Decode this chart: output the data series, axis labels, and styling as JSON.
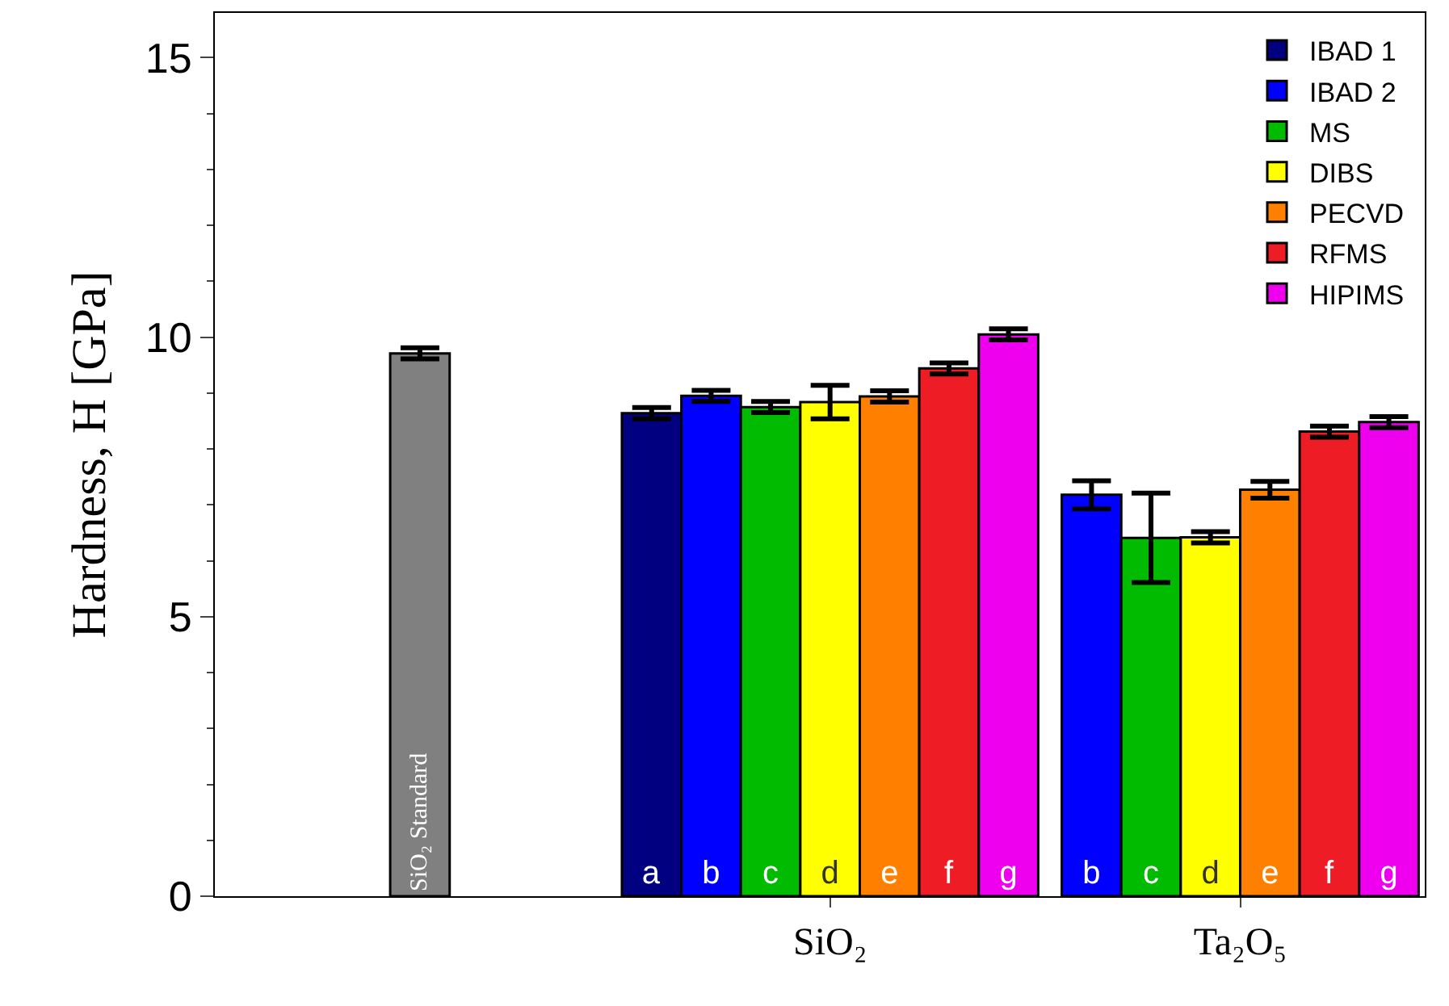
{
  "chart_data": {
    "type": "bar",
    "ylabel": "Hardness, H [GPa]",
    "categories": [
      null,
      "SiO₂",
      "Ta₂O₅"
    ],
    "series": [
      {
        "color": "#808080",
        "values": [
          9.71,
          null,
          null
        ],
        "errors": [
          0.1,
          null,
          null
        ],
        "value_labels": [
          "SiO₂ Standard",
          null,
          null
        ]
      },
      {
        "name": "IBAD 1",
        "color": "#000080",
        "values": [
          null,
          8.64,
          null
        ],
        "errors": [
          null,
          0.1,
          null
        ],
        "value_labels": [
          null,
          "a",
          null
        ]
      },
      {
        "name": "IBAD 2",
        "color": "#0000ff",
        "values": [
          null,
          8.95,
          7.18
        ],
        "errors": [
          null,
          0.1,
          0.25
        ],
        "value_labels": [
          null,
          "b",
          "b"
        ]
      },
      {
        "name": "MS",
        "color": "#00bb00",
        "values": [
          null,
          8.75,
          6.41
        ],
        "errors": [
          null,
          0.1,
          0.8
        ],
        "value_labels": [
          null,
          "c",
          "c"
        ]
      },
      {
        "name": "DIBS",
        "color": "#ffff00",
        "values": [
          null,
          8.84,
          6.42
        ],
        "errors": [
          null,
          0.3,
          0.1
        ],
        "value_labels": [
          null,
          "d",
          "d"
        ]
      },
      {
        "name": "PECVD",
        "color": "#ff8000",
        "values": [
          null,
          8.94,
          7.27
        ],
        "errors": [
          null,
          0.1,
          0.15
        ],
        "value_labels": [
          null,
          "e",
          "e"
        ]
      },
      {
        "name": "RFMS",
        "color": "#ee1c24",
        "values": [
          null,
          9.44,
          8.31
        ],
        "errors": [
          null,
          0.1,
          0.1
        ],
        "value_labels": [
          null,
          "f",
          "f"
        ]
      },
      {
        "name": "HIPIMS",
        "color": "#ee00ee",
        "values": [
          null,
          10.05,
          8.48
        ],
        "errors": [
          null,
          0.1,
          0.1
        ],
        "value_labels": [
          null,
          "g",
          "g"
        ]
      }
    ],
    "ylim": [
      0,
      15.8
    ],
    "yticks": [
      0,
      5,
      10,
      15
    ],
    "legend": "top right"
  }
}
